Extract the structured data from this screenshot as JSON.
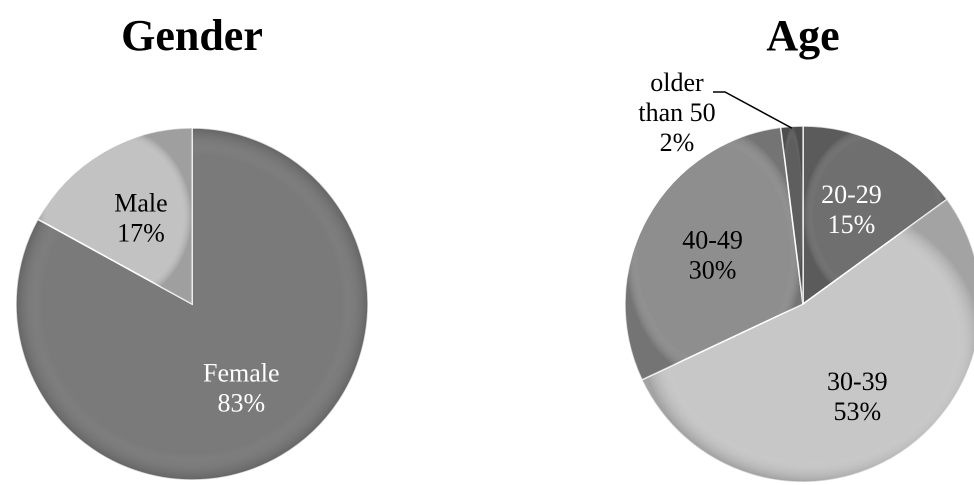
{
  "chart_data": [
    {
      "type": "pie",
      "title": "Gender",
      "categories": [
        "Female",
        "Male"
      ],
      "values": [
        83,
        17
      ],
      "labels": [
        "83%",
        "17%"
      ],
      "colors": [
        "#7a7a7a",
        "#c2c2c2"
      ],
      "label_colors": [
        "#ffffff",
        "#000000"
      ],
      "legend": "none"
    },
    {
      "type": "pie",
      "title": "Age",
      "categories": [
        "20-29",
        "30-39",
        "40-49",
        "older than 50"
      ],
      "category_lines": [
        [
          "20-29"
        ],
        [
          "30-39"
        ],
        [
          "40-49"
        ],
        [
          "older",
          "than 50"
        ]
      ],
      "values": [
        15,
        53,
        30,
        2
      ],
      "labels": [
        "15%",
        "53%",
        "30%",
        "2%"
      ],
      "colors": [
        "#6f6f6f",
        "#c7c7c7",
        "#8e8e8e",
        "#5e5e5e"
      ],
      "label_colors": [
        "#ffffff",
        "#000000",
        "#000000",
        "#000000"
      ],
      "legend": "none"
    }
  ]
}
